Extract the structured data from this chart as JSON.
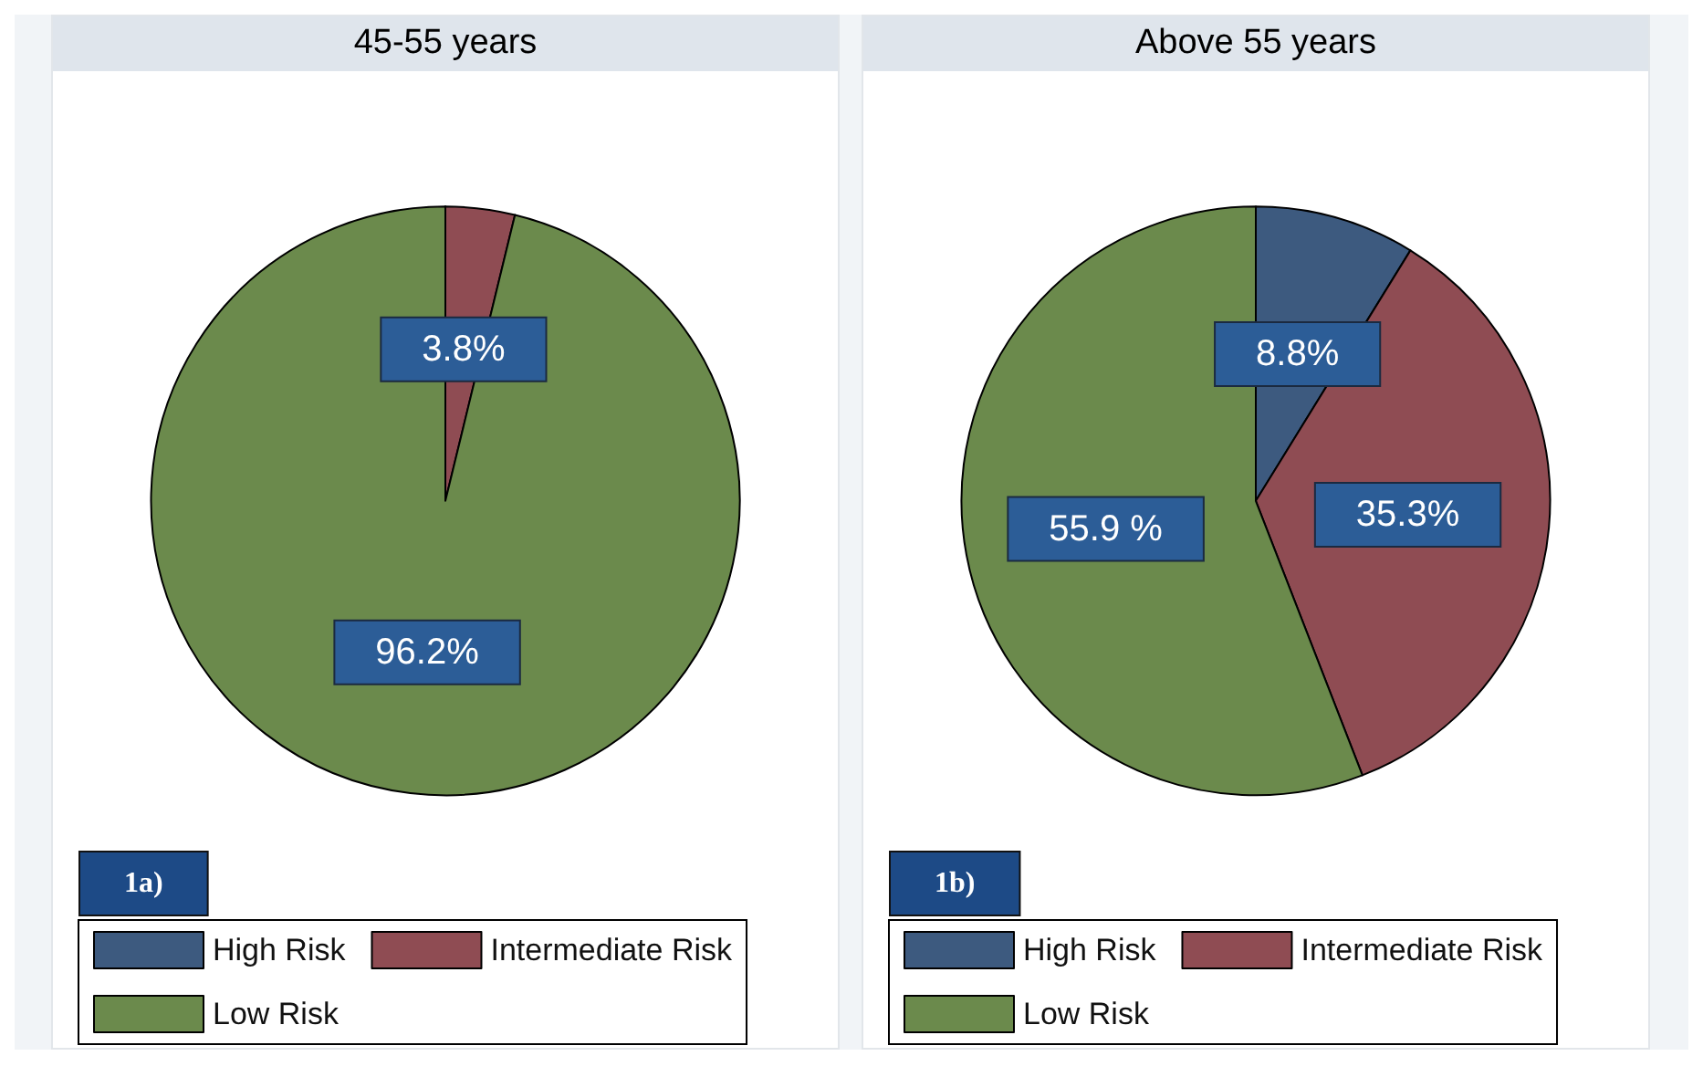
{
  "chart_data": [
    {
      "type": "pie",
      "title": "45-55 years",
      "categories": [
        "High Risk",
        "Intermediate Risk",
        "Low Risk"
      ],
      "values": [
        0,
        3.8,
        96.2
      ],
      "value_labels": [
        null,
        "3.8%",
        "96.2%"
      ],
      "colors": [
        "#3d5a7f",
        "#8f4c53",
        "#6b8a4c"
      ],
      "legend": "bottom",
      "annotations": [
        "1a)"
      ]
    },
    {
      "type": "pie",
      "title": "Above 55 years",
      "categories": [
        "High Risk",
        "Intermediate Risk",
        "Low Risk"
      ],
      "values": [
        8.8,
        35.3,
        55.9
      ],
      "value_labels": [
        "8.8%",
        "35.3%",
        "55.9 %"
      ],
      "colors": [
        "#3d5a7f",
        "#8f4c53",
        "#6b8a4c"
      ],
      "legend": "bottom",
      "annotations": [
        "1b)"
      ]
    }
  ]
}
